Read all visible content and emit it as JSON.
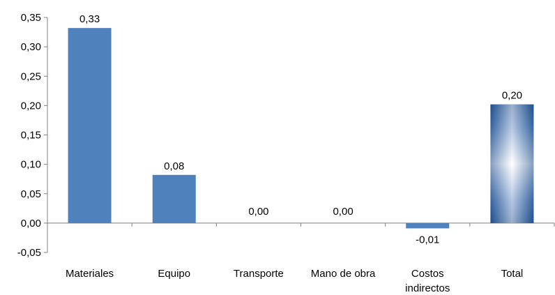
{
  "chart_data": {
    "type": "bar",
    "categories": [
      [
        "Materiales"
      ],
      [
        "Equipo"
      ],
      [
        "Transporte"
      ],
      [
        "Mano de obra"
      ],
      [
        "Costos",
        "indirectos"
      ],
      [
        "Total"
      ]
    ],
    "values": [
      0.332,
      0.082,
      0.0,
      0.0,
      -0.009,
      0.202
    ],
    "data_labels": [
      "0,33",
      "0,08",
      "0,00",
      "0,00",
      "-0,01",
      "0,20"
    ],
    "ylim": [
      -0.05,
      0.35
    ],
    "yticks": [
      -0.05,
      0.0,
      0.05,
      0.1,
      0.15,
      0.2,
      0.25,
      0.3,
      0.35
    ],
    "ytick_labels": [
      "-0,05",
      "0,00",
      "0,05",
      "0,10",
      "0,15",
      "0,20",
      "0,25",
      "0,30",
      "0,35"
    ],
    "grid": false,
    "legend": "none",
    "colors": {
      "bar": "#4f81bd",
      "total_dark": "#1f4e8c",
      "total_light": "#ffffff",
      "axis": "#7f7f7f"
    }
  }
}
